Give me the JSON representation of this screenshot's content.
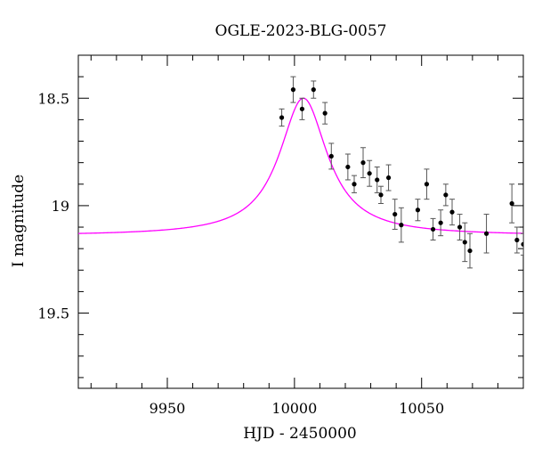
{
  "chart_data": {
    "type": "scatter",
    "title": "OGLE-2023-BLG-0057",
    "xlabel": "HJD - 2450000",
    "ylabel": "I magnitude",
    "xlim": [
      9915,
      10090
    ],
    "ylim": [
      19.85,
      18.3
    ],
    "y_inverted": true,
    "x_ticks": [
      9950,
      10000,
      10050
    ],
    "x_tick_labels": [
      "9950",
      "10000",
      "10050"
    ],
    "y_ticks": [
      18.5,
      19.0,
      19.5
    ],
    "y_tick_labels": [
      "18.5",
      "19",
      "19.5"
    ],
    "grid": false,
    "legend": "none",
    "model_color": "#ff00ff",
    "point_color": "#000000",
    "model": {
      "t0": 10003.5,
      "baseline": 19.14,
      "peak": 18.5,
      "width": 11.5
    },
    "series": [
      {
        "points": [
          {
            "x": 9995.0,
            "y": 18.59,
            "err": 0.04
          },
          {
            "x": 9999.5,
            "y": 18.46,
            "err": 0.06
          },
          {
            "x": 10003.0,
            "y": 18.55,
            "err": 0.05
          },
          {
            "x": 10007.5,
            "y": 18.46,
            "err": 0.04
          },
          {
            "x": 10012.0,
            "y": 18.57,
            "err": 0.05
          },
          {
            "x": 10014.5,
            "y": 18.77,
            "err": 0.06
          },
          {
            "x": 10021.0,
            "y": 18.82,
            "err": 0.06
          },
          {
            "x": 10023.5,
            "y": 18.9,
            "err": 0.04
          },
          {
            "x": 10027.0,
            "y": 18.8,
            "err": 0.07
          },
          {
            "x": 10029.5,
            "y": 18.85,
            "err": 0.06
          },
          {
            "x": 10032.5,
            "y": 18.88,
            "err": 0.06
          },
          {
            "x": 10034.0,
            "y": 18.95,
            "err": 0.04
          },
          {
            "x": 10037.0,
            "y": 18.87,
            "err": 0.06
          },
          {
            "x": 10039.5,
            "y": 19.04,
            "err": 0.07
          },
          {
            "x": 10042.0,
            "y": 19.09,
            "err": 0.08
          },
          {
            "x": 10048.5,
            "y": 19.02,
            "err": 0.05
          },
          {
            "x": 10052.0,
            "y": 18.9,
            "err": 0.07
          },
          {
            "x": 10054.5,
            "y": 19.11,
            "err": 0.05
          },
          {
            "x": 10057.5,
            "y": 19.08,
            "err": 0.06
          },
          {
            "x": 10059.5,
            "y": 18.95,
            "err": 0.05
          },
          {
            "x": 10062.0,
            "y": 19.03,
            "err": 0.06
          },
          {
            "x": 10065.0,
            "y": 19.1,
            "err": 0.06
          },
          {
            "x": 10067.0,
            "y": 19.17,
            "err": 0.09
          },
          {
            "x": 10069.0,
            "y": 19.21,
            "err": 0.08
          },
          {
            "x": 10075.5,
            "y": 19.13,
            "err": 0.09
          },
          {
            "x": 10085.5,
            "y": 18.99,
            "err": 0.09
          },
          {
            "x": 10087.5,
            "y": 19.16,
            "err": 0.06
          },
          {
            "x": 10090.0,
            "y": 19.18,
            "err": 0.05
          }
        ]
      }
    ]
  }
}
